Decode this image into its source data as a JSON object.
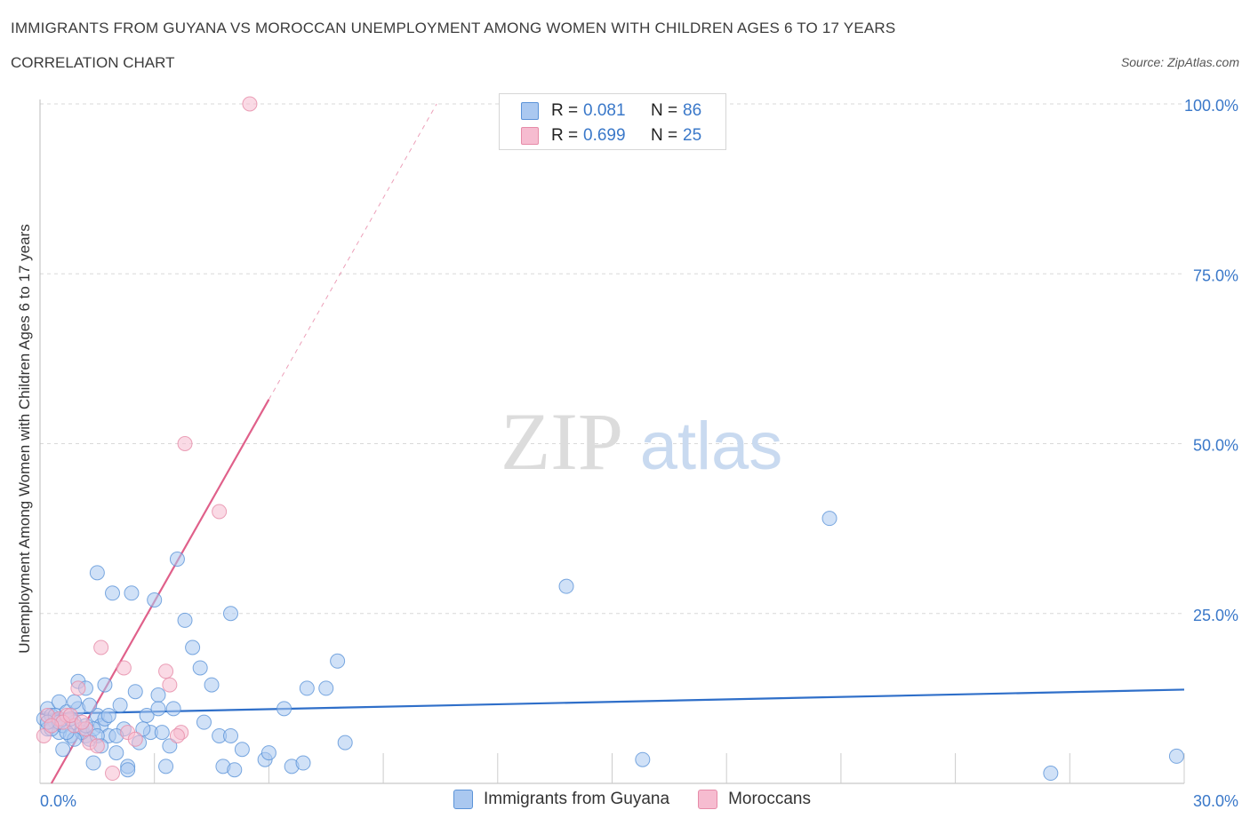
{
  "header": {
    "title": "IMMIGRANTS FROM GUYANA VS MOROCCAN UNEMPLOYMENT AMONG WOMEN WITH CHILDREN AGES 6 TO 17 YEARS",
    "subtitle": "CORRELATION CHART",
    "source": "Source: ZipAtlas.com"
  },
  "legend": {
    "rows": [
      {
        "r_label": "R =",
        "r_value": "0.081",
        "n_label": "N =",
        "n_value": "86",
        "color": "#aac8f0"
      },
      {
        "r_label": "R =",
        "r_value": "0.699",
        "n_label": "N =",
        "n_value": "25",
        "color": "#f6bcd0"
      }
    ]
  },
  "bottom_legend": {
    "items": [
      {
        "label": "Immigrants from Guyana",
        "color": "#aac8f0"
      },
      {
        "label": "Moroccans",
        "color": "#f6bcd0"
      }
    ]
  },
  "watermark": {
    "zip": "ZIP",
    "atlas": "atlas"
  },
  "chart_data": {
    "type": "scatter",
    "title": "IMMIGRANTS FROM GUYANA VS MOROCCAN UNEMPLOYMENT AMONG WOMEN WITH CHILDREN AGES 6 TO 17 YEARS",
    "xlabel": "",
    "ylabel": "Unemployment Among Women with Children Ages 6 to 17 years",
    "xlim": [
      0,
      30
    ],
    "ylim": [
      0,
      100
    ],
    "x_tick_labels": [
      "0.0%",
      "30.0%"
    ],
    "y_tick_labels": [
      "25.0%",
      "50.0%",
      "75.0%",
      "100.0%"
    ],
    "y_ticks": [
      25,
      50,
      75,
      100
    ],
    "grid": true,
    "legend_position": "top-center",
    "series": [
      {
        "name": "Immigrants from Guyana",
        "color": "#5b93d8",
        "fill": "#aac8f0",
        "trend": {
          "x": [
            0,
            30
          ],
          "y": [
            10.2,
            13.8
          ],
          "color": "#2f6fc9"
        },
        "points": [
          [
            0.1,
            9.5
          ],
          [
            0.2,
            11
          ],
          [
            0.2,
            8
          ],
          [
            0.3,
            10
          ],
          [
            0.4,
            9
          ],
          [
            0.5,
            7.5
          ],
          [
            0.5,
            12
          ],
          [
            0.6,
            5
          ],
          [
            0.6,
            8.5
          ],
          [
            0.7,
            10.5
          ],
          [
            0.8,
            7
          ],
          [
            0.9,
            9
          ],
          [
            1.0,
            11
          ],
          [
            1.0,
            15
          ],
          [
            1.1,
            8
          ],
          [
            1.2,
            7
          ],
          [
            1.2,
            14
          ],
          [
            1.3,
            6.5
          ],
          [
            1.4,
            3
          ],
          [
            1.5,
            10
          ],
          [
            1.5,
            31
          ],
          [
            1.6,
            8.5
          ],
          [
            1.7,
            14.5
          ],
          [
            1.8,
            7
          ],
          [
            1.9,
            28
          ],
          [
            2.0,
            4.5
          ],
          [
            2.1,
            11.5
          ],
          [
            2.2,
            8
          ],
          [
            2.3,
            2.5
          ],
          [
            2.4,
            28
          ],
          [
            2.5,
            13.5
          ],
          [
            2.6,
            6
          ],
          [
            2.8,
            10
          ],
          [
            2.9,
            7.5
          ],
          [
            3.0,
            27
          ],
          [
            3.1,
            13
          ],
          [
            3.2,
            7.5
          ],
          [
            3.3,
            2.5
          ],
          [
            3.4,
            5.5
          ],
          [
            3.5,
            11
          ],
          [
            3.6,
            33
          ],
          [
            3.8,
            24
          ],
          [
            4.0,
            20
          ],
          [
            4.2,
            17
          ],
          [
            4.3,
            9
          ],
          [
            4.5,
            14.5
          ],
          [
            4.7,
            7
          ],
          [
            4.8,
            2.5
          ],
          [
            5.0,
            7
          ],
          [
            5.0,
            25
          ],
          [
            5.1,
            2
          ],
          [
            5.3,
            5
          ],
          [
            5.9,
            3.5
          ],
          [
            6.0,
            4.5
          ],
          [
            6.4,
            11
          ],
          [
            6.6,
            2.5
          ],
          [
            6.9,
            3
          ],
          [
            7.0,
            14
          ],
          [
            7.5,
            14
          ],
          [
            7.8,
            18
          ],
          [
            8.0,
            6
          ],
          [
            13.8,
            29
          ],
          [
            15.8,
            3.5
          ],
          [
            20.7,
            39
          ],
          [
            26.5,
            1.5
          ],
          [
            29.8,
            4
          ],
          [
            0.3,
            8
          ],
          [
            0.4,
            10
          ],
          [
            0.8,
            9.5
          ],
          [
            1.1,
            7.5
          ],
          [
            1.4,
            8
          ],
          [
            1.7,
            9.5
          ],
          [
            2.3,
            2
          ],
          [
            3.1,
            11
          ],
          [
            0.9,
            6.5
          ],
          [
            1.3,
            11.5
          ],
          [
            2.0,
            7
          ],
          [
            0.5,
            9
          ],
          [
            0.7,
            7.5
          ],
          [
            1.5,
            7
          ],
          [
            1.8,
            10
          ],
          [
            2.7,
            8
          ],
          [
            0.2,
            9
          ],
          [
            1.2,
            8.5
          ],
          [
            0.9,
            12
          ],
          [
            1.6,
            5.5
          ]
        ]
      },
      {
        "name": "Moroccans",
        "color": "#e68ba8",
        "fill": "#f6bcd0",
        "trend": {
          "x": [
            0.3,
            6.0
          ],
          "y": [
            0,
            56.5
          ],
          "color": "#e0608a",
          "dashed_extension": {
            "x": [
              6.0,
              10.4
            ],
            "y": [
              56.5,
              100
            ]
          }
        },
        "points": [
          [
            5.5,
            100
          ],
          [
            3.8,
            50
          ],
          [
            4.7,
            40
          ],
          [
            1.6,
            20
          ],
          [
            2.2,
            17
          ],
          [
            3.3,
            16.5
          ],
          [
            3.4,
            14.5
          ],
          [
            1.0,
            14
          ],
          [
            0.2,
            10
          ],
          [
            0.5,
            9.5
          ],
          [
            0.7,
            10
          ],
          [
            0.9,
            8.5
          ],
          [
            1.2,
            8
          ],
          [
            0.1,
            7
          ],
          [
            0.6,
            9
          ],
          [
            0.3,
            8.5
          ],
          [
            1.3,
            6
          ],
          [
            1.5,
            5.5
          ],
          [
            2.3,
            7.5
          ],
          [
            2.5,
            6.5
          ],
          [
            3.7,
            7.5
          ],
          [
            1.9,
            1.5
          ],
          [
            0.8,
            10
          ],
          [
            1.1,
            9
          ],
          [
            3.6,
            7
          ]
        ]
      }
    ]
  }
}
